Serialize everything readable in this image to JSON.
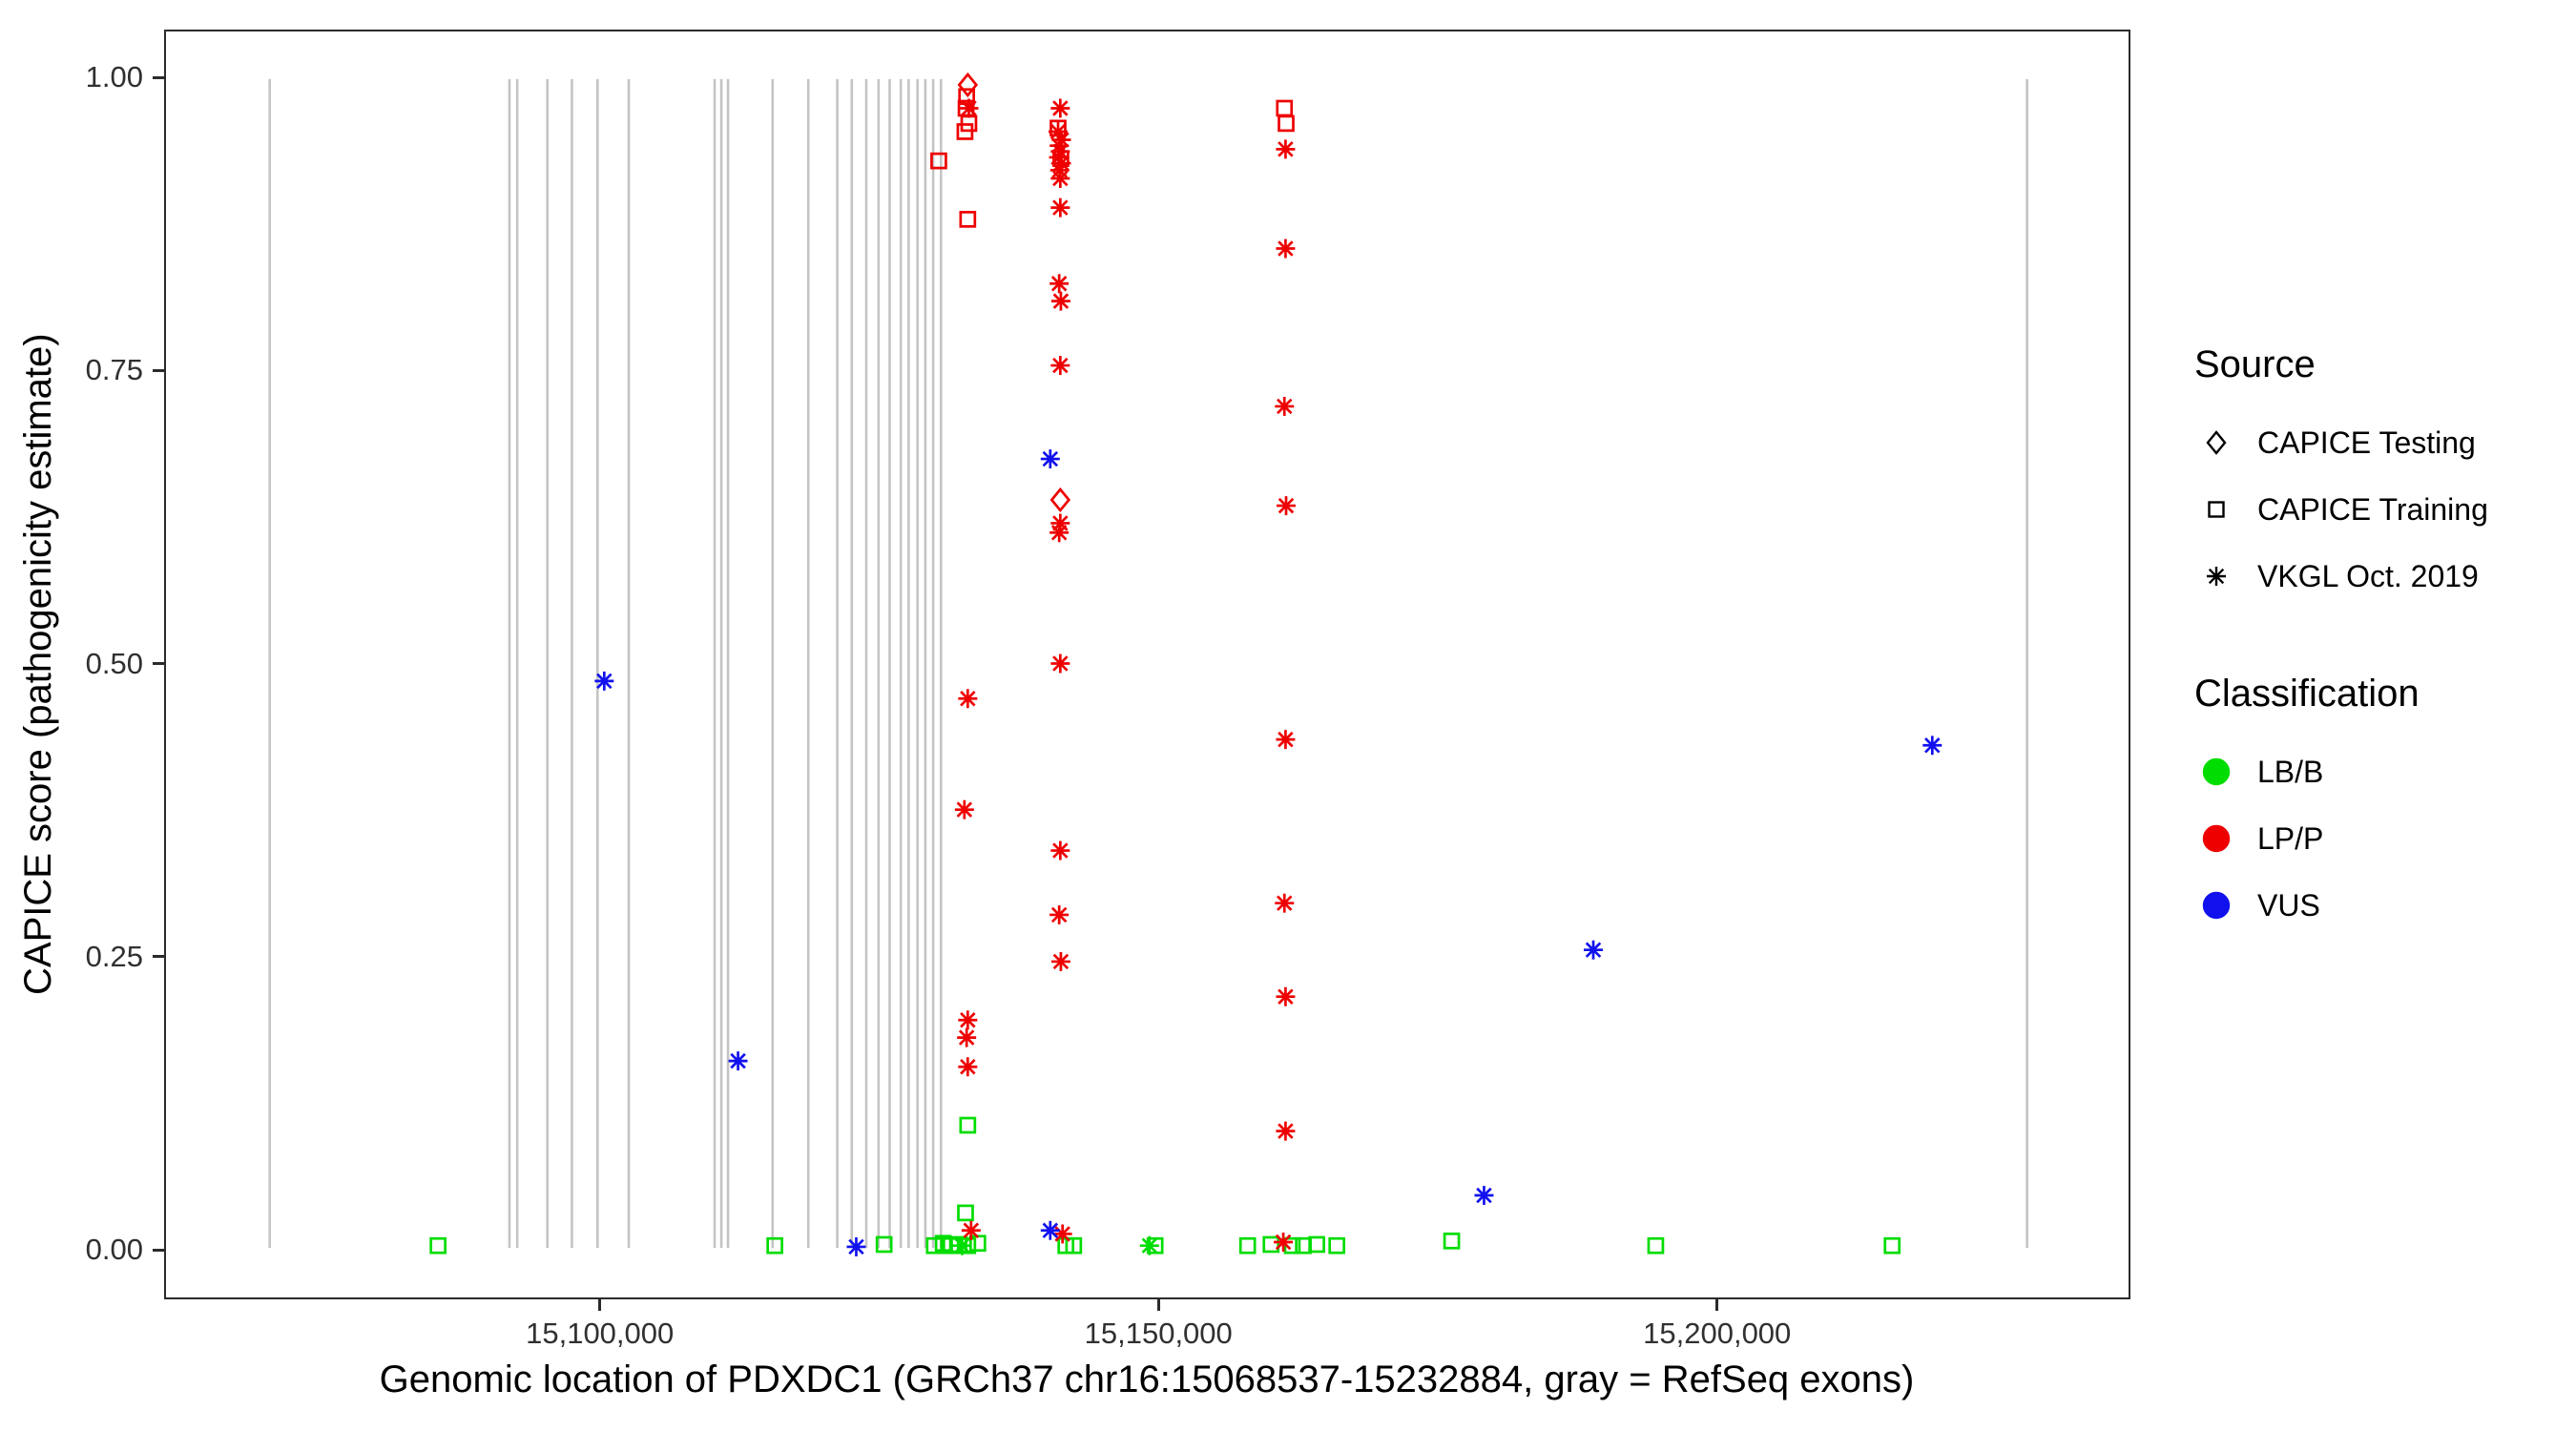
{
  "colors": {
    "LB/B": "#00DD00",
    "LP/P": "#EE0000",
    "VUS": "#1111EE",
    "exon": "#c4c4c4",
    "legend_source_marker": "#000000"
  },
  "figure": {
    "y_axis": {
      "ticks": [
        {
          "label": "1.00",
          "value": 1.0
        },
        {
          "label": "0.75",
          "value": 0.75
        },
        {
          "label": "0.50",
          "value": 0.5
        },
        {
          "label": "0.25",
          "value": 0.25
        },
        {
          "label": "0.00",
          "value": 0.0
        }
      ]
    },
    "x_axis": {
      "ticks": [
        {
          "label": "15,100,000",
          "value": 15100000
        },
        {
          "label": "15,150,000",
          "value": 15150000
        },
        {
          "label": "15,200,000",
          "value": 15200000
        }
      ]
    },
    "legend": {
      "source": {
        "title": "Source",
        "items": [
          {
            "label": "CAPICE Testing",
            "marker": "diamond"
          },
          {
            "label": "CAPICE Training",
            "marker": "square"
          },
          {
            "label": "VKGL Oct. 2019",
            "marker": "asterisk"
          }
        ]
      },
      "classification": {
        "title": "Classification",
        "items": [
          {
            "label": "LB/B"
          },
          {
            "label": "LP/P"
          },
          {
            "label": "VUS"
          }
        ]
      }
    }
  },
  "chart_data": {
    "type": "scatter",
    "title": "",
    "xlabel": "Genomic location of PDXDC1 (GRCh37 chr16:15068537-15232884, gray = RefSeq exons)",
    "ylabel": "CAPICE score (pathogenicity estimate)",
    "xlim": [
      15061000,
      15237000
    ],
    "ylim": [
      0,
      1
    ],
    "grid": false,
    "legend_position": "right",
    "exons": [
      15070300,
      15091800,
      15092500,
      15095200,
      15097400,
      15099700,
      15102500,
      15110200,
      15110800,
      15111400,
      15115400,
      15118600,
      15121200,
      15122500,
      15123800,
      15124900,
      15125900,
      15126900,
      15127600,
      15128400,
      15129100,
      15129800,
      15130500,
      15227900
    ],
    "series": [
      {
        "source": "CAPICE Testing",
        "class": "LP/P",
        "marker": "diamond",
        "points": [
          [
            15132900,
            0.995
          ],
          [
            15141200,
            0.64
          ]
        ]
      },
      {
        "source": "CAPICE Training",
        "class": "LP/P",
        "marker": "square",
        "points": [
          [
            15130300,
            0.93
          ],
          [
            15132800,
            0.985
          ],
          [
            15132750,
            0.975
          ],
          [
            15133000,
            0.962
          ],
          [
            15132650,
            0.955
          ],
          [
            15132900,
            0.88
          ],
          [
            15141000,
            0.958
          ],
          [
            15141250,
            0.932
          ],
          [
            15161300,
            0.975
          ],
          [
            15161450,
            0.962
          ]
        ]
      },
      {
        "source": "CAPICE Training",
        "class": "LB/B",
        "marker": "square",
        "points": [
          [
            15132900,
            0.105
          ],
          [
            15132700,
            0.03
          ],
          [
            15085400,
            0.002
          ],
          [
            15115600,
            0.002
          ],
          [
            15125400,
            0.003
          ],
          [
            15129900,
            0.002
          ],
          [
            15130700,
            0.004
          ],
          [
            15131400,
            0.002
          ],
          [
            15132100,
            0.003
          ],
          [
            15132900,
            0.002
          ],
          [
            15133800,
            0.004
          ],
          [
            15141700,
            0.002
          ],
          [
            15142400,
            0.002
          ],
          [
            15149700,
            0.002
          ],
          [
            15158000,
            0.002
          ],
          [
            15160100,
            0.003
          ],
          [
            15162000,
            0.002
          ],
          [
            15163000,
            0.002
          ],
          [
            15164200,
            0.003
          ],
          [
            15166000,
            0.002
          ],
          [
            15176300,
            0.006
          ],
          [
            15194600,
            0.002
          ],
          [
            15215800,
            0.002
          ]
        ]
      },
      {
        "source": "VKGL Oct. 2019",
        "class": "LP/P",
        "marker": "asterisk",
        "points": [
          [
            15133000,
            0.975
          ],
          [
            15132900,
            0.47
          ],
          [
            15132600,
            0.375
          ],
          [
            15132900,
            0.195
          ],
          [
            15132800,
            0.18
          ],
          [
            15132900,
            0.155
          ],
          [
            15133200,
            0.015
          ],
          [
            15141200,
            0.975
          ],
          [
            15141000,
            0.955
          ],
          [
            15141300,
            0.948
          ],
          [
            15141100,
            0.943
          ],
          [
            15141200,
            0.938
          ],
          [
            15141050,
            0.933
          ],
          [
            15141300,
            0.928
          ],
          [
            15141150,
            0.922
          ],
          [
            15141200,
            0.915
          ],
          [
            15141200,
            0.89
          ],
          [
            15141100,
            0.825
          ],
          [
            15141250,
            0.81
          ],
          [
            15141200,
            0.755
          ],
          [
            15141200,
            0.62
          ],
          [
            15141100,
            0.612
          ],
          [
            15141200,
            0.5
          ],
          [
            15141200,
            0.34
          ],
          [
            15141100,
            0.285
          ],
          [
            15141250,
            0.245
          ],
          [
            15141400,
            0.012
          ],
          [
            15161400,
            0.94
          ],
          [
            15161400,
            0.855
          ],
          [
            15161300,
            0.72
          ],
          [
            15161450,
            0.635
          ],
          [
            15161400,
            0.435
          ],
          [
            15161300,
            0.295
          ],
          [
            15161400,
            0.215
          ],
          [
            15161400,
            0.1
          ],
          [
            15161200,
            0.005
          ]
        ]
      },
      {
        "source": "VKGL Oct. 2019",
        "class": "LB/B",
        "marker": "asterisk",
        "points": [
          [
            15132400,
            0.002
          ],
          [
            15149200,
            0.002
          ]
        ]
      },
      {
        "source": "VKGL Oct. 2019",
        "class": "VUS",
        "marker": "asterisk",
        "points": [
          [
            15100300,
            0.485
          ],
          [
            15112300,
            0.16
          ],
          [
            15122900,
            0.001
          ],
          [
            15140300,
            0.675
          ],
          [
            15140300,
            0.015
          ],
          [
            15179200,
            0.045
          ],
          [
            15189000,
            0.255
          ],
          [
            15219400,
            0.43
          ]
        ]
      }
    ]
  }
}
